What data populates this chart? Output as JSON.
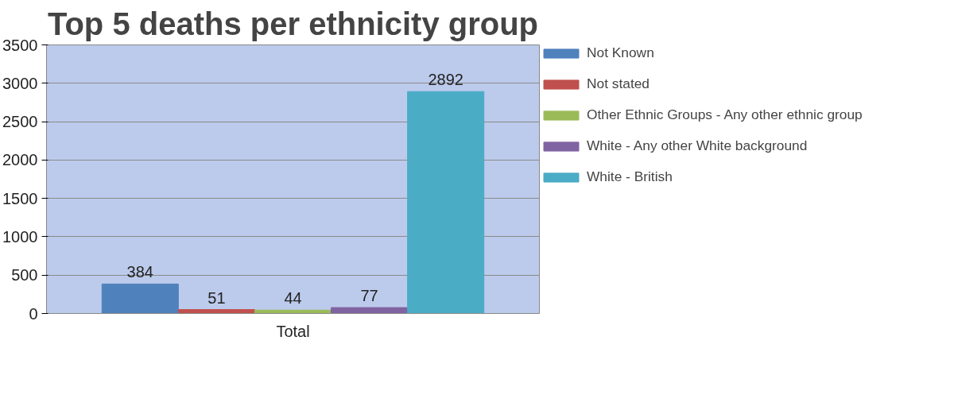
{
  "chart_data": {
    "type": "bar",
    "title": "Top 5 deaths per ethnicity group",
    "categories": [
      "Total"
    ],
    "series": [
      {
        "name": "Not Known",
        "color": "#4f81bd",
        "values": [
          384
        ]
      },
      {
        "name": "Not stated",
        "color": "#c0504d",
        "values": [
          51
        ]
      },
      {
        "name": "Other Ethnic Groups - Any other ethnic group",
        "color": "#9bbb59",
        "values": [
          44
        ]
      },
      {
        "name": "White - Any other White background",
        "color": "#8064a2",
        "values": [
          77
        ]
      },
      {
        "name": "White - British",
        "color": "#4bacc6",
        "values": [
          2892
        ]
      }
    ],
    "ylim": [
      0,
      3500
    ],
    "yticks": [
      0,
      500,
      1000,
      1500,
      2000,
      2500,
      3000,
      3500
    ],
    "grid": "y",
    "legend": "right",
    "data_labels": true
  }
}
